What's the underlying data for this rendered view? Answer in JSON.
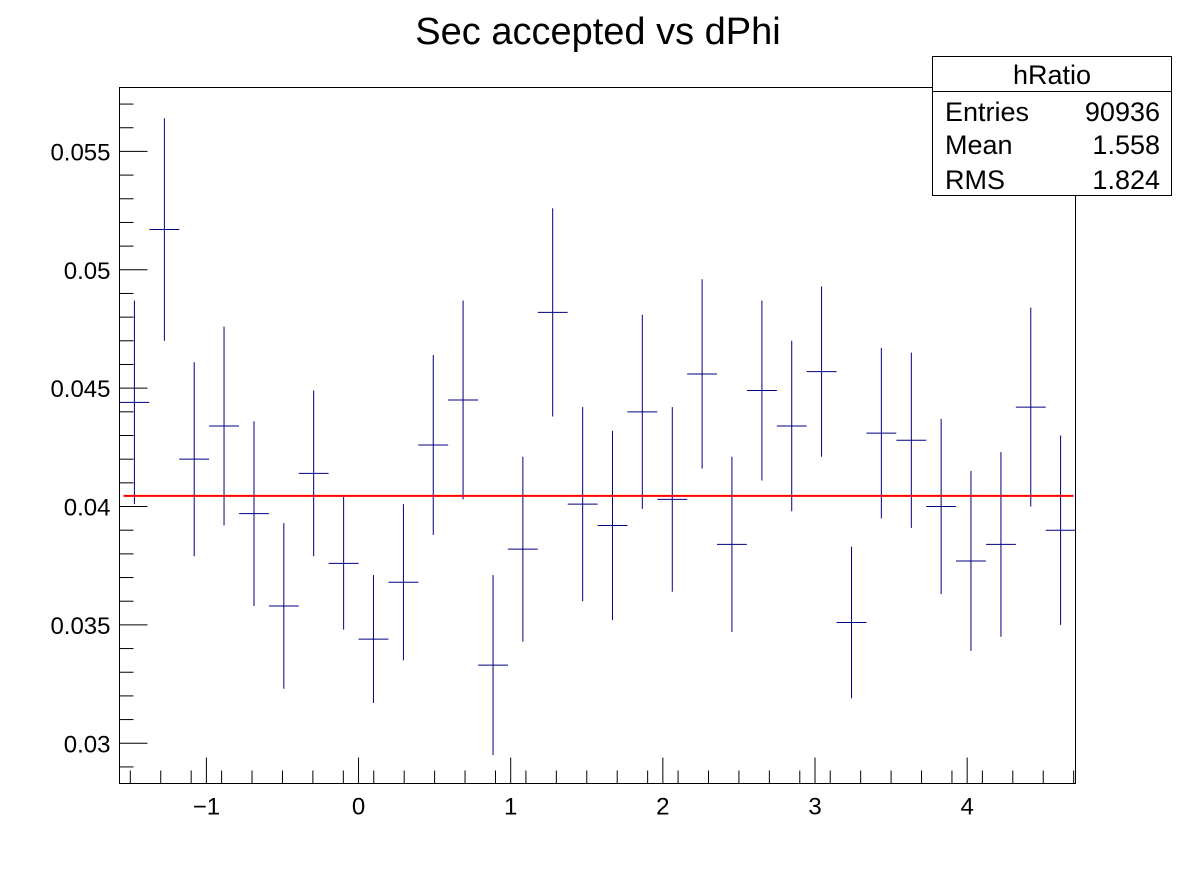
{
  "chart_data": {
    "type": "scatter",
    "title": "Sec accepted vs dPhi",
    "xlabel": "",
    "ylabel": "",
    "xlim": [
      -1.571,
      4.712
    ],
    "ylim": [
      0.0283,
      0.0577
    ],
    "x_ticks": [
      -1,
      0,
      1,
      2,
      3,
      4
    ],
    "x_tick_labels": [
      "−1",
      "0",
      "1",
      "2",
      "3",
      "4"
    ],
    "y_ticks": [
      0.03,
      0.035,
      0.04,
      0.045,
      0.05,
      0.055
    ],
    "y_tick_labels": [
      "0.03",
      "0.035",
      "0.04",
      "0.045",
      "0.05",
      "0.055"
    ],
    "grid": false,
    "series": [
      {
        "marker_color": "#000080",
        "bin_width": 0.1963,
        "x": [
          -1.473,
          -1.276,
          -1.08,
          -0.884,
          -0.687,
          -0.491,
          -0.295,
          -0.098,
          0.098,
          0.295,
          0.491,
          0.687,
          0.884,
          1.08,
          1.276,
          1.473,
          1.669,
          1.865,
          2.062,
          2.258,
          2.454,
          2.651,
          2.847,
          3.043,
          3.24,
          3.436,
          3.633,
          3.829,
          4.025,
          4.222,
          4.418,
          4.614
        ],
        "y": [
          0.0444,
          0.0517,
          0.042,
          0.0434,
          0.0397,
          0.0358,
          0.0414,
          0.0376,
          0.0344,
          0.0368,
          0.0426,
          0.0445,
          0.0333,
          0.0382,
          0.0482,
          0.0401,
          0.0392,
          0.044,
          0.0403,
          0.0456,
          0.0384,
          0.0449,
          0.0434,
          0.0457,
          0.0351,
          0.0431,
          0.0428,
          0.04,
          0.0377,
          0.0384,
          0.0442,
          0.039
        ],
        "y_err": [
          0.0043,
          0.0047,
          0.0041,
          0.0042,
          0.0039,
          0.0035,
          0.0035,
          0.0028,
          0.0027,
          0.0033,
          0.0038,
          0.0042,
          0.0038,
          0.0039,
          0.0044,
          0.0041,
          0.004,
          0.0041,
          0.0039,
          0.004,
          0.0037,
          0.0038,
          0.0036,
          0.0036,
          0.0032,
          0.0036,
          0.0037,
          0.0037,
          0.0038,
          0.0039,
          0.0042,
          0.004
        ]
      }
    ],
    "fit_line": {
      "y": 0.04045,
      "color": "#ff0000"
    },
    "stats_box": {
      "title": "hRatio",
      "rows": [
        {
          "label": "Entries",
          "value": "90936"
        },
        {
          "label": "Mean",
          "value": "1.558"
        },
        {
          "label": "RMS",
          "value": "1.824"
        }
      ]
    }
  }
}
